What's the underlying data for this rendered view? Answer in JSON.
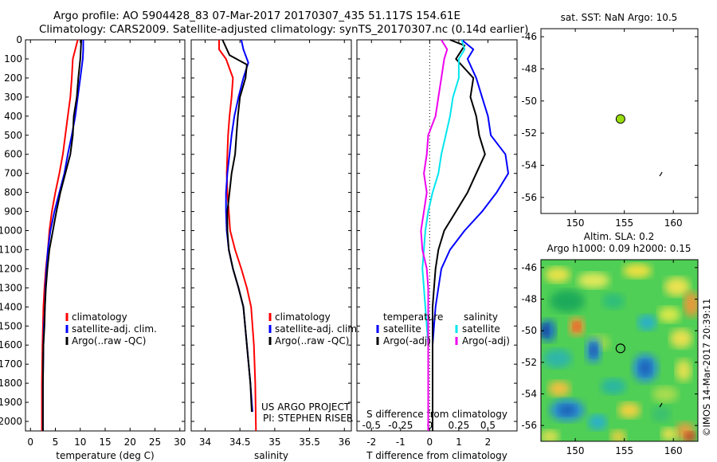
{
  "header": {
    "title_line1": "Argo profile: AO 5904428_83 07-Mar-2017 20170307_435 51.117S 154.61E",
    "title_line2": "Climatology: CARS2009. Satellite-adjusted climatology: synTS_20170307.nc (0.14d earlier)"
  },
  "watermark": "©IMOS 14-Mar-2017 20:39:11",
  "colors": {
    "climatology": "#ff0000",
    "satellite": "#0000ff",
    "argo": "#000000",
    "t_satellite": "#00e5ee",
    "t_argo": "#ee00ee",
    "float_marker": "#99dd11"
  },
  "chart_data": [
    {
      "id": "temperature",
      "type": "line",
      "xlabel": "temperature (deg C)",
      "ylabel": "",
      "xlim": [
        -1,
        31
      ],
      "ylim": [
        0,
        2050
      ],
      "xticks": [
        0,
        5,
        10,
        15,
        20,
        25,
        30
      ],
      "yticks": [
        0,
        100,
        200,
        300,
        400,
        500,
        600,
        700,
        800,
        900,
        1000,
        1100,
        1200,
        1300,
        1400,
        1500,
        1600,
        1700,
        1800,
        1900,
        2000
      ],
      "legend": [
        "climatology",
        "satellite-adj. clim.",
        "Argo(..raw -QC)"
      ],
      "series": [
        {
          "name": "climatology",
          "color": "red",
          "x": [
            9.5,
            9.0,
            8.5,
            8.3,
            8.0,
            7.5,
            7.0,
            6.5,
            5.8,
            5.0,
            4.3,
            3.8,
            3.5,
            3.1,
            2.8,
            2.6,
            2.5,
            2.4,
            2.3,
            2.3
          ],
          "y": [
            0,
            50,
            100,
            200,
            300,
            400,
            500,
            600,
            700,
            800,
            900,
            1000,
            1100,
            1200,
            1300,
            1400,
            1500,
            1600,
            1800,
            2050
          ]
        },
        {
          "name": "satellite-adj. clim.",
          "color": "blue",
          "x": [
            10.6,
            10.6,
            10.5,
            10.0,
            9.5,
            9.0,
            8.3,
            7.5,
            6.8,
            5.8,
            4.8,
            4.0,
            3.5,
            3.2,
            3.0,
            2.9,
            2.7,
            2.6,
            2.5,
            2.5
          ],
          "y": [
            0,
            50,
            100,
            200,
            300,
            400,
            500,
            600,
            700,
            800,
            900,
            1000,
            1100,
            1200,
            1300,
            1400,
            1500,
            1600,
            1800,
            2050
          ]
        },
        {
          "name": "Argo(..raw -QC)",
          "color": "black",
          "x": [
            10.2,
            10.1,
            10.0,
            9.6,
            9.3,
            8.7,
            8.5,
            8.0,
            7.0,
            6.0,
            5.2,
            4.5,
            3.8,
            3.4,
            3.1,
            2.9,
            2.8,
            2.6,
            2.5,
            2.5
          ],
          "y": [
            0,
            50,
            100,
            200,
            300,
            400,
            500,
            600,
            700,
            800,
            900,
            1000,
            1100,
            1200,
            1300,
            1400,
            1500,
            1600,
            1800,
            2050
          ]
        }
      ]
    },
    {
      "id": "salinity",
      "type": "line",
      "xlabel": "salinity",
      "ylabel": "",
      "xlim": [
        33.8,
        36.1
      ],
      "ylim": [
        0,
        2050
      ],
      "xticks": [
        34,
        34.5,
        35,
        35.5,
        36
      ],
      "xtick_labels": [
        "34",
        "34.5",
        "35",
        "35.5",
        "36"
      ],
      "legend": [
        "climatology",
        "satellite-adj. clim.",
        "Argo(..raw -QC)"
      ],
      "annotations": [
        "US ARGO PROJECT",
        "PI: STEPHEN RISER"
      ],
      "series": [
        {
          "name": "climatology",
          "color": "red",
          "x": [
            34.2,
            34.2,
            34.3,
            34.4,
            34.38,
            34.35,
            34.33,
            34.32,
            34.31,
            34.32,
            34.34,
            34.36,
            34.43,
            34.52,
            34.6,
            34.66,
            34.7,
            34.72,
            34.73
          ],
          "y": [
            0,
            50,
            100,
            200,
            300,
            400,
            500,
            600,
            700,
            800,
            900,
            1000,
            1100,
            1200,
            1300,
            1400,
            1600,
            1800,
            2050
          ]
        },
        {
          "name": "satellite-adj. clim.",
          "color": "blue",
          "x": [
            34.52,
            34.55,
            34.62,
            34.55,
            34.48,
            34.42,
            34.38,
            34.35,
            34.32,
            34.3,
            34.3,
            34.31,
            34.34,
            34.4,
            34.48,
            34.55,
            34.6,
            34.65,
            34.68
          ],
          "y": [
            0,
            50,
            120,
            200,
            300,
            400,
            500,
            600,
            700,
            800,
            900,
            1000,
            1100,
            1200,
            1300,
            1400,
            1600,
            1800,
            1950
          ]
        },
        {
          "name": "Argo(..raw -QC)",
          "color": "black",
          "x": [
            34.25,
            34.35,
            34.6,
            34.58,
            34.5,
            34.47,
            34.45,
            34.43,
            34.38,
            34.35,
            34.32,
            34.32,
            34.34,
            34.4,
            34.48,
            34.55,
            34.6,
            34.65,
            34.67
          ],
          "y": [
            0,
            80,
            130,
            200,
            300,
            400,
            500,
            600,
            700,
            800,
            900,
            1000,
            1100,
            1200,
            1300,
            1400,
            1600,
            1800,
            1950
          ]
        }
      ]
    },
    {
      "id": "differences",
      "type": "line",
      "xlabel": "T difference from climatology",
      "xlabel_top": "S difference from climatology",
      "xlim": [
        -2.5,
        3.0
      ],
      "ylim": [
        0,
        2050
      ],
      "xticks": [
        -2,
        -1,
        0,
        1,
        2
      ],
      "xtick_labels": [
        "-2",
        "-1",
        "0",
        "1",
        "2"
      ],
      "s_ticks": [
        -2,
        -1,
        0,
        1,
        2
      ],
      "s_tick_labels": [
        "-0.5",
        "-0.25",
        "0",
        "0.25",
        "0.5"
      ],
      "legend": {
        "temperature_heading": "temperature",
        "salinity_heading": "salinity",
        "temperature": [
          "satellite",
          "Argo(-adj)"
        ],
        "salinity": [
          "satellite",
          "Argo(-adj)"
        ]
      },
      "series": [
        {
          "name": "temperature satellite",
          "color": "blue",
          "x": [
            1.1,
            1.5,
            1.3,
            1.6,
            1.8,
            2.0,
            2.1,
            2.6,
            2.7,
            2.3,
            1.8,
            1.2,
            0.7,
            0.4,
            0.3,
            0.2,
            0.15,
            0.1,
            0.1,
            0.1
          ],
          "y": [
            0,
            50,
            100,
            200,
            300,
            400,
            500,
            600,
            700,
            800,
            900,
            1000,
            1100,
            1200,
            1300,
            1400,
            1500,
            1600,
            1800,
            2050
          ]
        },
        {
          "name": "temperature Argo(-adj)",
          "color": "black",
          "x": [
            0.7,
            1.2,
            0.9,
            1.5,
            1.4,
            1.6,
            1.7,
            1.9,
            1.6,
            1.3,
            0.9,
            0.5,
            0.3,
            0.2,
            0.15,
            0.1,
            0.1,
            0.1,
            0.1,
            0.1
          ],
          "y": [
            0,
            30,
            100,
            200,
            300,
            400,
            500,
            600,
            700,
            800,
            900,
            1000,
            1100,
            1200,
            1300,
            1400,
            1500,
            1600,
            1800,
            2050
          ]
        },
        {
          "name": "salinity satellite",
          "color": "cyan",
          "x": [
            1.1,
            1.2,
            1.0,
            1.0,
            0.8,
            0.7,
            0.55,
            0.4,
            0.3,
            0.1,
            -0.05,
            -0.15,
            -0.2,
            -0.25,
            -0.2,
            -0.15,
            -0.1,
            -0.05,
            -0.05,
            -0.05
          ],
          "y": [
            0,
            50,
            100,
            200,
            300,
            400,
            500,
            600,
            700,
            800,
            900,
            1000,
            1100,
            1200,
            1300,
            1400,
            1500,
            1600,
            1800,
            2050
          ]
        },
        {
          "name": "salinity Argo(-adj)",
          "color": "magenta",
          "x": [
            0.4,
            0.6,
            0.5,
            0.4,
            0.3,
            0.2,
            -0.05,
            -0.1,
            -0.2,
            -0.1,
            -0.2,
            -0.3,
            -0.25,
            -0.1,
            -0.05,
            -0.05,
            -0.05,
            -0.05,
            -0.05,
            -0.05
          ],
          "y": [
            0,
            50,
            100,
            200,
            300,
            400,
            500,
            600,
            700,
            800,
            900,
            1000,
            1100,
            1200,
            1300,
            1400,
            1500,
            1600,
            1800,
            2050
          ]
        }
      ]
    },
    {
      "id": "sst_map",
      "type": "scatter",
      "title": "sat. SST: NaN Argo: 10.5",
      "xlim": [
        146.5,
        162.5
      ],
      "ylim": [
        -57,
        -45.5
      ],
      "xticks": [
        150,
        155,
        160
      ],
      "yticks": [
        -46,
        -48,
        -50,
        -52,
        -54,
        -56
      ],
      "points": [
        {
          "x": 154.61,
          "y": -51.117
        }
      ]
    },
    {
      "id": "sla_map",
      "type": "heatmap",
      "title": "Altim. SLA: 0.2",
      "subtitle": "Argo h1000: 0.09 h2000: 0.15",
      "xlim": [
        146.5,
        162.5
      ],
      "ylim": [
        -57,
        -45.5
      ],
      "xticks": [
        150,
        155,
        160
      ],
      "yticks": [
        -46,
        -48,
        -50,
        -52,
        -54,
        -56
      ],
      "points": [
        {
          "x": 154.61,
          "y": -51.117
        }
      ]
    }
  ]
}
